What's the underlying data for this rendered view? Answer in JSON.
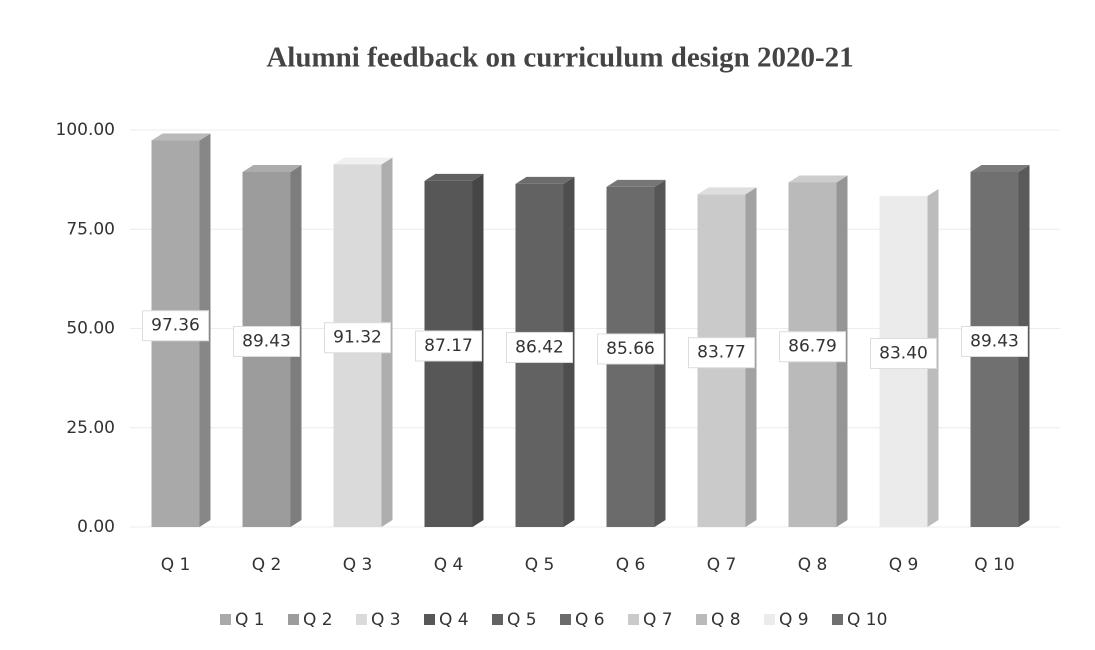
{
  "chart_data": {
    "type": "bar3d",
    "title": "Alumni feedback on curriculum design 2020-21",
    "categories": [
      "Q 1",
      "Q 2",
      "Q 3",
      "Q 4",
      "Q 5",
      "Q 6",
      "Q 7",
      "Q 8",
      "Q 9",
      "Q 10"
    ],
    "values": [
      97.36,
      89.43,
      91.32,
      87.17,
      86.42,
      85.66,
      83.77,
      86.79,
      83.4,
      89.43
    ],
    "value_labels": [
      "97.36",
      "89.43",
      "91.32",
      "87.17",
      "86.42",
      "85.66",
      "83.77",
      "86.79",
      "83.40",
      "89.43"
    ],
    "colors": [
      "#a9a9a9",
      "#9c9c9c",
      "#dadada",
      "#575757",
      "#626262",
      "#6b6b6b",
      "#cacaca",
      "#bababa",
      "#ebebeb",
      "#707070"
    ],
    "ylim": [
      0,
      100
    ],
    "yticks": [
      {
        "value": 0,
        "label": "0.00"
      },
      {
        "value": 25,
        "label": "25.00"
      },
      {
        "value": 50,
        "label": "50.00"
      },
      {
        "value": 75,
        "label": "75.00"
      },
      {
        "value": 100,
        "label": "100.00"
      }
    ],
    "grid": true,
    "legend": "bottom"
  }
}
